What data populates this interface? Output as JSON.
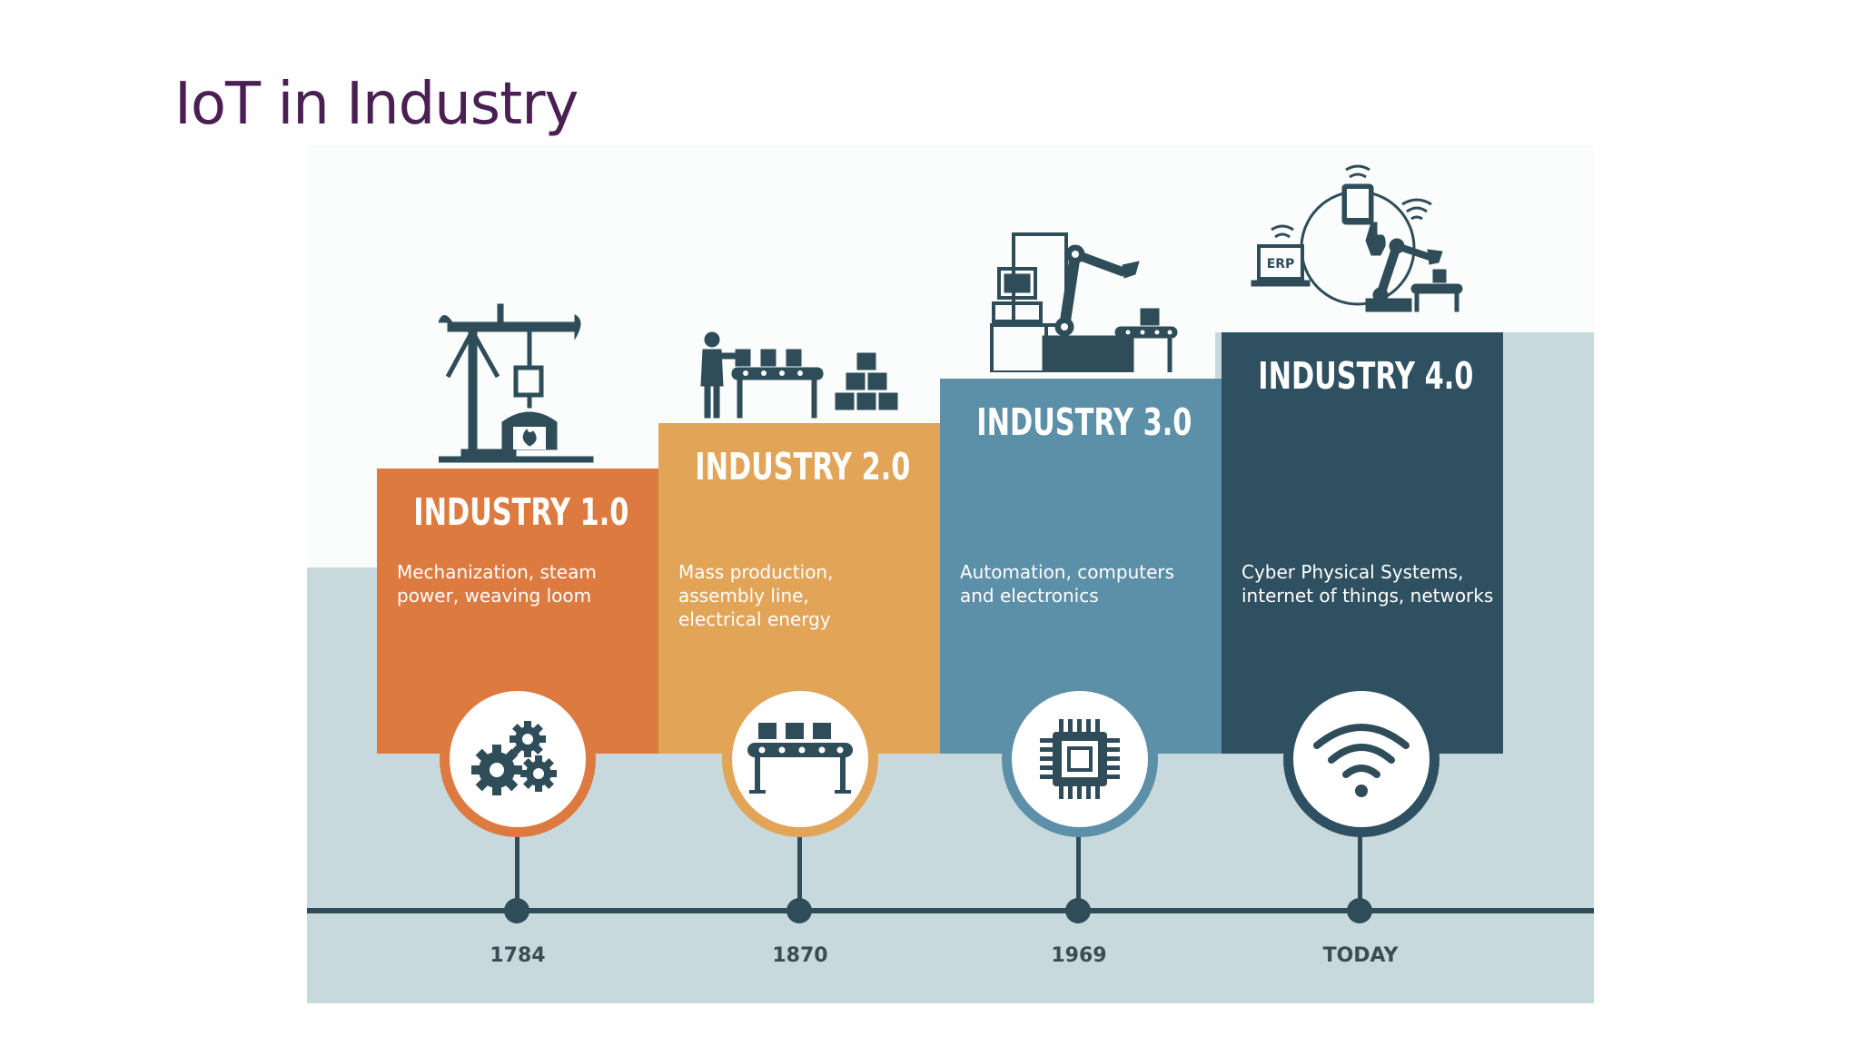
{
  "slide": {
    "title": "IoT in Industry"
  },
  "colors": {
    "title": "#4a1f52",
    "background_shape": "#c8d9de",
    "timeline": "#2e4d59",
    "stage1": "#dc7a40",
    "stage2": "#e2a457",
    "stage3": "#5c8fa8",
    "stage4": "#2e5060"
  },
  "stages": [
    {
      "title": "INDUSTRY 1.0",
      "description": "Mechanization, steam\npower, weaving loom",
      "icon": "gears-icon",
      "illustration": "oil-pump-furnace-illustration",
      "year": "1784"
    },
    {
      "title": "INDUSTRY 2.0",
      "description": "Mass production,\nassembly line,\nelectrical energy",
      "icon": "conveyor-belt-icon",
      "illustration": "worker-assembly-line-illustration",
      "year": "1870"
    },
    {
      "title": "INDUSTRY 3.0",
      "description": "Automation, computers\nand electronics",
      "icon": "microchip-icon",
      "illustration": "computer-robot-arm-illustration",
      "year": "1969"
    },
    {
      "title": "INDUSTRY 4.0",
      "description": "Cyber Physical Systems,\ninternet of things, networks",
      "icon": "wifi-icon",
      "illustration": "erp-network-illustration",
      "year": "TODAY"
    }
  ],
  "illustration_labels": {
    "erp": "ERP"
  }
}
